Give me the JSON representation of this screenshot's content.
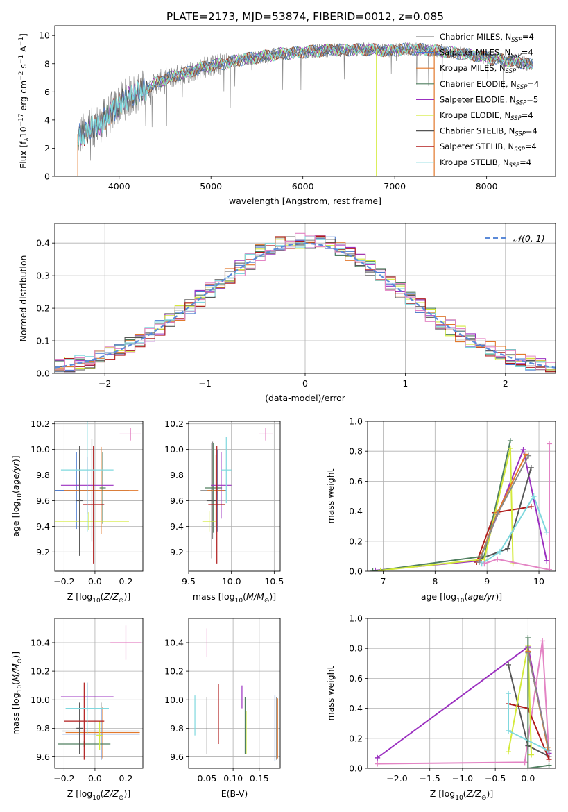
{
  "figure": {
    "title": "PLATE=2173, MJD=53874, FIBERID=0012, z=0.085"
  },
  "chart_data": [
    {
      "id": "spectrum",
      "type": "line",
      "xlabel": "wavelength [Angstrom, rest frame]",
      "ylabel": "Flux [fλ10⁻¹⁷ erg cm⁻² s⁻¹ A⁻¹]",
      "xlim": [
        3300,
        8750
      ],
      "ylim": [
        0,
        10.7
      ],
      "xticks": [
        4000,
        5000,
        6000,
        7000,
        8000
      ],
      "yticks": [
        0,
        2,
        4,
        6,
        8,
        10
      ],
      "grid": false,
      "legend_position": "right",
      "x_range_data": [
        3550,
        8500
      ],
      "continuum": {
        "x": [
          3550,
          3650,
          3750,
          3850,
          3950,
          4050,
          4150,
          4250,
          4350,
          4450,
          4550,
          4650,
          4750,
          4850,
          4950,
          5050,
          5150,
          5250,
          5350,
          5450,
          5550,
          5650,
          5750,
          5850,
          5950,
          6050,
          6150,
          6250,
          6350,
          6450,
          6550,
          6650,
          6750,
          6850,
          6950,
          7050,
          7150,
          7250,
          7350,
          7450,
          7550,
          7650,
          7750,
          7850,
          7950,
          8050,
          8150,
          8250,
          8350,
          8450,
          8500
        ],
        "y": [
          2.8,
          3.2,
          3.6,
          4.1,
          4.8,
          5.4,
          5.8,
          6.1,
          6.4,
          6.8,
          7.0,
          7.2,
          7.4,
          7.6,
          7.8,
          7.9,
          8.0,
          8.2,
          8.3,
          8.4,
          8.5,
          8.6,
          8.7,
          8.75,
          8.8,
          8.85,
          8.9,
          8.95,
          9.0,
          8.95,
          9.0,
          9.0,
          9.0,
          8.95,
          8.9,
          9.0,
          9.05,
          9.0,
          9.0,
          8.9,
          8.85,
          8.75,
          8.7,
          8.6,
          8.5,
          8.4,
          8.3,
          8.2,
          8.1,
          8.0,
          7.9
        ]
      },
      "series": [
        {
          "name": "Chabrier MILES, N",
          "sub": "SSP",
          "tail": "=4",
          "color": "#8a8a8a"
        },
        {
          "name": "Salpeter MILES, N",
          "sub": "SSP",
          "tail": "=4",
          "color": "#4878cf"
        },
        {
          "name": "Kroupa MILES, N",
          "sub": "SSP",
          "tail": "=4",
          "color": "#e2782b"
        },
        {
          "name": "Chabrier ELODIE, N",
          "sub": "SSP",
          "tail": "=4",
          "color": "#4f7f5f"
        },
        {
          "name": "Salpeter ELODIE, N",
          "sub": "SSP",
          "tail": "=5",
          "color": "#9b30c0"
        },
        {
          "name": "Kroupa ELODIE, N",
          "sub": "SSP",
          "tail": "=4",
          "color": "#d4ea3c"
        },
        {
          "name": "Chabrier STELIB, N",
          "sub": "SSP",
          "tail": "=4",
          "color": "#555555"
        },
        {
          "name": "Salpeter STELIB, N",
          "sub": "SSP",
          "tail": "=4",
          "color": "#b01c1c"
        },
        {
          "name": "Kroupa STELIB, N",
          "sub": "SSP",
          "tail": "=4",
          "color": "#7fd8de"
        }
      ]
    },
    {
      "id": "residuals",
      "type": "line",
      "xlabel": "(data-model)/error",
      "ylabel": "Normed distribution",
      "xlim": [
        -2.5,
        2.5
      ],
      "ylim": [
        0,
        0.46
      ],
      "xticks": [
        -2,
        -1,
        0,
        1,
        2
      ],
      "yticks": [
        0.0,
        0.1,
        0.2,
        0.3,
        0.4
      ],
      "grid": true,
      "legend_position": "top-right",
      "gaussian": {
        "name": "𝒩(0, 1)",
        "color": "#5b8ad8",
        "mean": 0,
        "sigma": 1
      },
      "series_colors": [
        "#8a8a8a",
        "#4878cf",
        "#e2782b",
        "#4f7f5f",
        "#9b30c0",
        "#d4ea3c",
        "#555555",
        "#b01c1c",
        "#7fd8de",
        "#e384c4"
      ]
    },
    {
      "id": "age-vs-Z",
      "type": "scatter",
      "xlabel": "Z [log10(Z/Z⊙)]",
      "ylabel": "age  [log10(age/yr)]",
      "xlim": [
        -0.26,
        0.31
      ],
      "ylim": [
        9.05,
        10.22
      ],
      "xticks": [
        -0.2,
        0.0,
        0.2
      ],
      "yticks": [
        9.2,
        9.4,
        9.6,
        9.8,
        10.0,
        10.2
      ],
      "grid": true,
      "points": [
        {
          "x": -0.02,
          "y": 9.68,
          "xerr": 0.24,
          "yerr": 0.4,
          "color": "#8a8a8a"
        },
        {
          "x": -0.12,
          "y": 9.68,
          "xerr": 0.14,
          "yerr": 0.3,
          "color": "#4878cf"
        },
        {
          "x": 0.04,
          "y": 9.68,
          "xerr": 0.24,
          "yerr": 0.34,
          "color": "#e2782b"
        },
        {
          "x": 0.05,
          "y": 9.7,
          "xerr": 0.02,
          "yerr": 0.28,
          "color": "#4f7f5f"
        },
        {
          "x": -0.05,
          "y": 9.72,
          "xerr": 0.17,
          "yerr": 0.22,
          "color": "#9b30c0"
        },
        {
          "x": -0.04,
          "y": 9.44,
          "xerr": 0.26,
          "yerr": 0.07,
          "color": "#d4ea3c"
        },
        {
          "x": -0.1,
          "y": 9.6,
          "xerr": 0.02,
          "yerr": 0.43,
          "color": "#555555"
        },
        {
          "x": -0.01,
          "y": 9.57,
          "xerr": 0.07,
          "yerr": 0.46,
          "color": "#b01c1c"
        },
        {
          "x": -0.05,
          "y": 9.84,
          "xerr": 0.17,
          "yerr": 0.48,
          "color": "#7fd8de"
        },
        {
          "x": 0.23,
          "y": 10.12,
          "xerr": 0.07,
          "yerr": 0.05,
          "color": "#e384c4"
        }
      ]
    },
    {
      "id": "age-vs-mass",
      "type": "scatter",
      "xlabel": "mass [log10(M/M⊙)]",
      "ylabel": "",
      "xlim": [
        9.5,
        10.57
      ],
      "ylim": [
        9.05,
        10.22
      ],
      "xticks": [
        9.5,
        10.0,
        10.5
      ],
      "yticks": [
        9.2,
        9.4,
        9.6,
        9.8,
        10.0,
        10.2
      ],
      "grid": true,
      "points": [
        {
          "x": 9.78,
          "y": 9.68,
          "xerr": 0.14,
          "yerr": 0.38,
          "color": "#8a8a8a"
        },
        {
          "x": 9.84,
          "y": 9.68,
          "xerr": 0.1,
          "yerr": 0.32,
          "color": "#4878cf"
        },
        {
          "x": 9.82,
          "y": 9.68,
          "xerr": 0.1,
          "yerr": 0.28,
          "color": "#e2782b"
        },
        {
          "x": 9.79,
          "y": 9.7,
          "xerr": 0.1,
          "yerr": 0.35,
          "color": "#4f7f5f"
        },
        {
          "x": 9.88,
          "y": 9.72,
          "xerr": 0.12,
          "yerr": 0.26,
          "color": "#9b30c0"
        },
        {
          "x": 9.74,
          "y": 9.44,
          "xerr": 0.08,
          "yerr": 0.08,
          "color": "#d4ea3c"
        },
        {
          "x": 9.77,
          "y": 9.6,
          "xerr": 0.06,
          "yerr": 0.45,
          "color": "#555555"
        },
        {
          "x": 9.83,
          "y": 9.57,
          "xerr": 0.1,
          "yerr": 0.46,
          "color": "#b01c1c"
        },
        {
          "x": 9.94,
          "y": 9.84,
          "xerr": 0.06,
          "yerr": 0.26,
          "color": "#7fd8de"
        },
        {
          "x": 10.4,
          "y": 10.12,
          "xerr": 0.08,
          "yerr": 0.05,
          "color": "#e384c4"
        }
      ]
    },
    {
      "id": "massweight-vs-age",
      "type": "line",
      "xlabel": "age  [log10(age/yr)]",
      "ylabel": "mass weight",
      "xlim": [
        6.7,
        10.32
      ],
      "ylim": [
        0,
        1.0
      ],
      "xticks": [
        7,
        8,
        9,
        10
      ],
      "yticks": [
        0.0,
        0.2,
        0.4,
        0.6,
        0.8,
        1.0
      ],
      "grid": true,
      "series": [
        {
          "color": "#b01c1c",
          "x": [
            8.8,
            9.15,
            9.85
          ],
          "y": [
            0.06,
            0.39,
            0.43
          ]
        },
        {
          "color": "#9b30c0",
          "x": [
            6.85,
            8.85,
            9.7,
            10.15
          ],
          "y": [
            0.005,
            0.07,
            0.81,
            0.07
          ]
        },
        {
          "color": "#555555",
          "x": [
            8.85,
            9.4,
            9.85
          ],
          "y": [
            0.08,
            0.15,
            0.69
          ]
        },
        {
          "color": "#4f7f5f",
          "x": [
            6.8,
            8.95,
            9.45
          ],
          "y": [
            0.0,
            0.1,
            0.87
          ]
        },
        {
          "color": "#d4ea3c",
          "x": [
            6.95,
            8.95,
            9.45,
            9.5
          ],
          "y": [
            0.005,
            0.08,
            0.82,
            0.05
          ]
        },
        {
          "color": "#e2782b",
          "x": [
            8.85,
            9.2,
            9.75
          ],
          "y": [
            0.07,
            0.39,
            0.78
          ]
        },
        {
          "color": "#8a8a8a",
          "x": [
            8.85,
            9.2,
            9.8
          ],
          "y": [
            0.06,
            0.38,
            0.77
          ]
        },
        {
          "color": "#7fd8de",
          "x": [
            8.9,
            9.25,
            9.9,
            10.15
          ],
          "y": [
            0.05,
            0.13,
            0.5,
            0.26
          ]
        },
        {
          "color": "#e384c4",
          "x": [
            8.95,
            9.2,
            10.2,
            10.2
          ],
          "y": [
            0.05,
            0.08,
            0.01,
            0.85
          ]
        }
      ]
    },
    {
      "id": "mass-vs-Z",
      "type": "scatter",
      "xlabel": "Z [log10(Z/Z⊙)]",
      "ylabel": "mass [log10(M/M⊙)]",
      "xlim": [
        -0.26,
        0.31
      ],
      "ylim": [
        9.52,
        10.57
      ],
      "xticks": [
        -0.2,
        0.0,
        0.2
      ],
      "yticks": [
        9.6,
        9.8,
        10.0,
        10.2,
        10.4
      ],
      "grid": true,
      "points": [
        {
          "x": 0.04,
          "y": 9.78,
          "xerr": 0.25,
          "yerr": 0.2,
          "color": "#8a8a8a"
        },
        {
          "x": 0.04,
          "y": 9.76,
          "xerr": 0.25,
          "yerr": 0.18,
          "color": "#4878cf"
        },
        {
          "x": 0.05,
          "y": 9.77,
          "xerr": 0.24,
          "yerr": 0.18,
          "color": "#e2782b"
        },
        {
          "x": -0.07,
          "y": 9.69,
          "xerr": 0.17,
          "yerr": 0.02,
          "color": "#4f7f5f"
        },
        {
          "x": -0.05,
          "y": 10.02,
          "xerr": 0.17,
          "yerr": 0.1,
          "color": "#9b30c0"
        },
        {
          "x": 0.03,
          "y": 9.75,
          "xerr": 0.02,
          "yerr": 0.1,
          "color": "#d4ea3c"
        },
        {
          "x": -0.1,
          "y": 9.8,
          "xerr": 0.02,
          "yerr": 0.18,
          "color": "#555555"
        },
        {
          "x": -0.07,
          "y": 9.85,
          "xerr": 0.13,
          "yerr": 0.27,
          "color": "#b01c1c"
        },
        {
          "x": -0.05,
          "y": 9.94,
          "xerr": 0.14,
          "yerr": 0.18,
          "color": "#7fd8de"
        },
        {
          "x": 0.2,
          "y": 10.4,
          "xerr": 0.1,
          "yerr": 0.12,
          "color": "#e384c4"
        }
      ]
    },
    {
      "id": "mass-vs-ebv",
      "type": "scatter",
      "xlabel": "E(B-V)",
      "ylabel": "",
      "xlim": [
        0.015,
        0.19
      ],
      "ylim": [
        9.52,
        10.57
      ],
      "xticks": [
        0.05,
        0.1,
        0.15
      ],
      "yticks": [
        9.6,
        9.8,
        10.0,
        10.2,
        10.4
      ],
      "grid": true,
      "points": [
        {
          "x": 0.183,
          "y": 9.8,
          "xerr": 0,
          "yerr": 0.22,
          "color": "#8a8a8a"
        },
        {
          "x": 0.18,
          "y": 9.8,
          "xerr": 0,
          "yerr": 0.23,
          "color": "#4878cf"
        },
        {
          "x": 0.185,
          "y": 9.8,
          "xerr": 0,
          "yerr": 0.21,
          "color": "#e2782b"
        },
        {
          "x": 0.123,
          "y": 9.82,
          "xerr": 0,
          "yerr": 0.2,
          "color": "#4f7f5f"
        },
        {
          "x": 0.117,
          "y": 10.02,
          "xerr": 0,
          "yerr": 0.08,
          "color": "#9b30c0"
        },
        {
          "x": 0.125,
          "y": 9.77,
          "xerr": 0,
          "yerr": 0.15,
          "color": "#d4ea3c"
        },
        {
          "x": 0.05,
          "y": 9.82,
          "xerr": 0,
          "yerr": 0.2,
          "color": "#555555"
        },
        {
          "x": 0.072,
          "y": 9.9,
          "xerr": 0,
          "yerr": 0.21,
          "color": "#b01c1c"
        },
        {
          "x": 0.027,
          "y": 9.89,
          "xerr": 0,
          "yerr": 0.14,
          "color": "#7fd8de"
        },
        {
          "x": 0.05,
          "y": 10.4,
          "xerr": 0,
          "yerr": 0.1,
          "color": "#e384c4"
        }
      ]
    },
    {
      "id": "massweight-vs-Z",
      "type": "line",
      "xlabel": "Z [log10(Z/Z⊙)]",
      "ylabel": "mass weight",
      "xlim": [
        -2.45,
        0.42
      ],
      "ylim": [
        0,
        1.0
      ],
      "xticks": [
        -2.0,
        -1.5,
        -1.0,
        -0.5,
        0.0
      ],
      "yticks": [
        0.0,
        0.2,
        0.4,
        0.6,
        0.8,
        1.0
      ],
      "grid": true,
      "series": [
        {
          "color": "#9b30c0",
          "x": [
            -2.3,
            0.0,
            0.32
          ],
          "y": [
            0.07,
            0.81,
            0.1
          ]
        },
        {
          "color": "#e384c4",
          "x": [
            -2.3,
            -0.05,
            0.22,
            0.32
          ],
          "y": [
            0.03,
            0.04,
            0.85,
            0.08
          ]
        },
        {
          "color": "#555555",
          "x": [
            -0.3,
            0.0,
            0.32
          ],
          "y": [
            0.69,
            0.15,
            0.08
          ]
        },
        {
          "color": "#b01c1c",
          "x": [
            -0.3,
            0.0,
            0.32
          ],
          "y": [
            0.43,
            0.4,
            0.06
          ]
        },
        {
          "color": "#d4ea3c",
          "x": [
            -0.3,
            0.0,
            0.05
          ],
          "y": [
            0.11,
            0.82,
            0.09
          ]
        },
        {
          "color": "#7fd8de",
          "x": [
            -0.3,
            -0.3,
            0.3
          ],
          "y": [
            0.5,
            0.25,
            0.12
          ]
        },
        {
          "color": "#4f7f5f",
          "x": [
            0.0,
            0.0,
            0.32
          ],
          "y": [
            0.87,
            0.0,
            0.02
          ]
        },
        {
          "color": "#e2782b",
          "x": [
            0.0,
            0.3
          ],
          "y": [
            0.78,
            0.14
          ]
        },
        {
          "color": "#8a8a8a",
          "x": [
            0.0,
            0.32
          ],
          "y": [
            0.77,
            0.12
          ]
        }
      ]
    }
  ]
}
